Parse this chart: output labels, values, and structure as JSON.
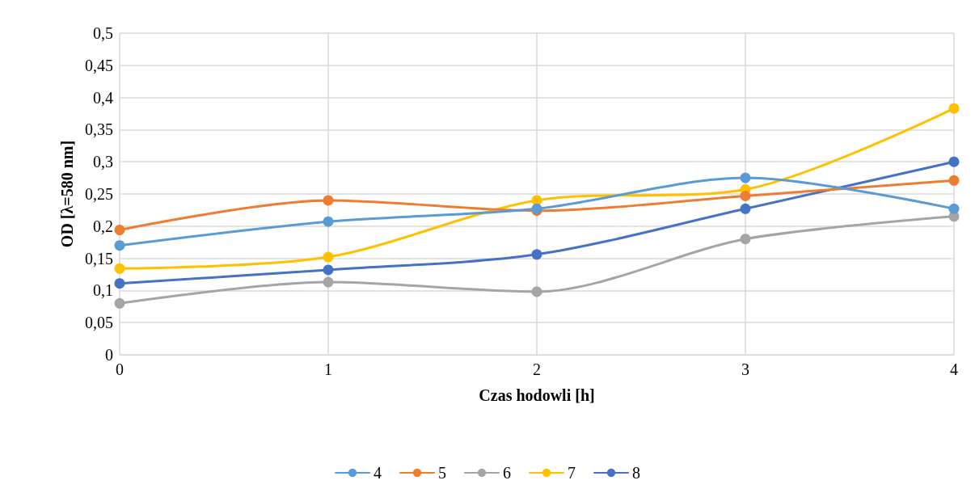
{
  "chart_data": {
    "type": "line",
    "xlabel": "Czas hodowli [h]",
    "ylabel": "OD [λ=580 nm]",
    "x": [
      0,
      1,
      2,
      3,
      4
    ],
    "xlim": [
      0,
      4
    ],
    "xticks": [
      0,
      1,
      2,
      3,
      4
    ],
    "ylim": [
      0,
      0.5
    ],
    "yticks": [
      {
        "value": 0,
        "label": "0"
      },
      {
        "value": 0.05,
        "label": "0,05"
      },
      {
        "value": 0.1,
        "label": "0,1"
      },
      {
        "value": 0.15,
        "label": "0,15"
      },
      {
        "value": 0.2,
        "label": "0,2"
      },
      {
        "value": 0.25,
        "label": "0,25"
      },
      {
        "value": 0.3,
        "label": "0,3"
      },
      {
        "value": 0.35,
        "label": "0,35"
      },
      {
        "value": 0.4,
        "label": "0,4"
      },
      {
        "value": 0.45,
        "label": "0,45"
      },
      {
        "value": 0.5,
        "label": "0,5"
      }
    ],
    "series": [
      {
        "name": "4",
        "color": "#5b9bd5",
        "values": [
          0.17,
          0.207,
          0.227,
          0.275,
          0.227
        ]
      },
      {
        "name": "5",
        "color": "#ed7d31",
        "values": [
          0.194,
          0.24,
          0.224,
          0.247,
          0.271
        ]
      },
      {
        "name": "6",
        "color": "#a5a5a5",
        "values": [
          0.08,
          0.113,
          0.098,
          0.18,
          0.215
        ]
      },
      {
        "name": "7",
        "color": "#ffc000",
        "values": [
          0.134,
          0.152,
          0.24,
          0.257,
          0.383
        ]
      },
      {
        "name": "8",
        "color": "#4472c4",
        "values": [
          0.111,
          0.132,
          0.156,
          0.227,
          0.3
        ]
      }
    ],
    "grid": true,
    "legend": "bottom",
    "marker": "circle",
    "line_style": "solid"
  }
}
